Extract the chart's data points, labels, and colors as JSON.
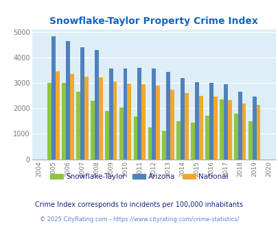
{
  "title": "Snowflake-Taylor Property Crime Index",
  "years": [
    2004,
    2005,
    2006,
    2007,
    2008,
    2009,
    2010,
    2011,
    2012,
    2013,
    2014,
    2015,
    2016,
    2017,
    2018,
    2019,
    2020
  ],
  "snowflake": [
    null,
    3000,
    3000,
    2650,
    2300,
    1900,
    2020,
    1680,
    1250,
    1120,
    1490,
    1450,
    1700,
    2350,
    1800,
    1490,
    null
  ],
  "arizona": [
    null,
    4820,
    4630,
    4400,
    4280,
    3560,
    3560,
    3580,
    3560,
    3420,
    3180,
    3040,
    3000,
    2960,
    2650,
    2450,
    null
  ],
  "national": [
    null,
    3450,
    3340,
    3240,
    3220,
    3050,
    2970,
    2960,
    2900,
    2740,
    2610,
    2490,
    2460,
    2330,
    2200,
    2130,
    null
  ],
  "snowflake_color": "#8dc63f",
  "arizona_color": "#4f81bd",
  "national_color": "#f0a830",
  "bg_color": "#ddeef6",
  "title_color": "#1565c0",
  "ylim": [
    0,
    5000
  ],
  "subtitle": "Crime Index corresponds to incidents per 100,000 inhabitants",
  "footer": "© 2025 CityRating.com - https://www.cityrating.com/crime-statistics/",
  "subtitle_color": "#1a237e",
  "footer_color": "#5c85d6",
  "all_years": [
    2004,
    2005,
    2006,
    2007,
    2008,
    2009,
    2010,
    2011,
    2012,
    2013,
    2014,
    2015,
    2016,
    2017,
    2018,
    2019,
    2020
  ]
}
